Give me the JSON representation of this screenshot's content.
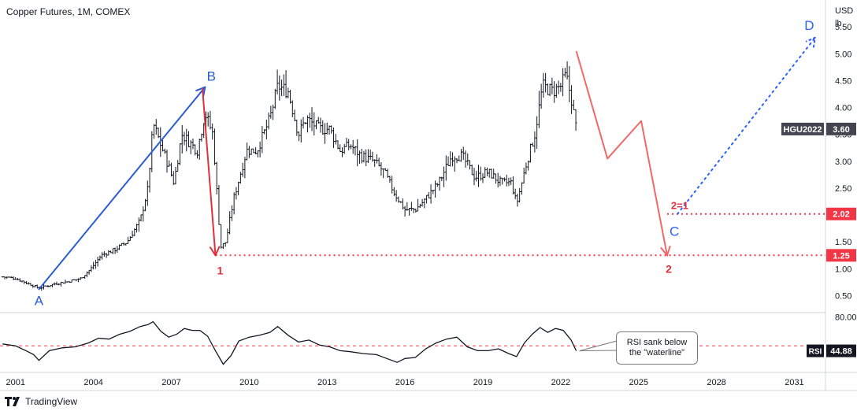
{
  "header": {
    "title": "Copper Futures, 1M, COMEX",
    "units_line1": "USD",
    "units_line2": "lb"
  },
  "footer": {
    "brand": "TradingView"
  },
  "colors": {
    "wave_blue": "#2a5bd7",
    "wave_red": "#e0303d",
    "projection_red": "#f0686a",
    "dotted_blue": "#2962ff",
    "candles": "#131722",
    "badge_dark": "#434651",
    "badge_red": "#f23645",
    "rsi_line": "#131722",
    "grid": "#e0e3eb"
  },
  "chart_data": [
    {
      "type": "candlestick",
      "title": "Copper Futures, 1M, COMEX",
      "xlabel": "",
      "ylabel": "USD lb",
      "x_ticks": [
        "2001",
        "2004",
        "2007",
        "2010",
        "2013",
        "2016",
        "2019",
        "2022",
        "2025",
        "2028",
        "2031"
      ],
      "x_range": [
        2000.4,
        2032.2
      ],
      "y_ticks": [
        "0.50",
        "1.00",
        "1.50",
        "2.00",
        "2.50",
        "3.00",
        "3.50",
        "4.00",
        "4.50",
        "5.00",
        "5.50"
      ],
      "y_range": [
        0.2,
        6.0
      ],
      "approx_close_path": [
        [
          2000.5,
          0.85
        ],
        [
          2001.0,
          0.82
        ],
        [
          2001.5,
          0.72
        ],
        [
          2001.9,
          0.64
        ],
        [
          2002.5,
          0.72
        ],
        [
          2003.0,
          0.76
        ],
        [
          2003.5,
          0.82
        ],
        [
          2003.9,
          1.0
        ],
        [
          2004.3,
          1.25
        ],
        [
          2004.8,
          1.35
        ],
        [
          2005.3,
          1.5
        ],
        [
          2005.8,
          1.9
        ],
        [
          2006.1,
          2.5
        ],
        [
          2006.3,
          3.7
        ],
        [
          2006.6,
          3.3
        ],
        [
          2006.9,
          2.9
        ],
        [
          2007.1,
          2.6
        ],
        [
          2007.4,
          3.5
        ],
        [
          2007.8,
          3.3
        ],
        [
          2008.0,
          3.2
        ],
        [
          2008.3,
          3.9
        ],
        [
          2008.6,
          3.5
        ],
        [
          2008.9,
          1.4
        ],
        [
          2009.1,
          1.5
        ],
        [
          2009.4,
          2.3
        ],
        [
          2009.9,
          3.2
        ],
        [
          2010.3,
          3.2
        ],
        [
          2010.8,
          3.8
        ],
        [
          2011.1,
          4.4
        ],
        [
          2011.5,
          4.3
        ],
        [
          2011.9,
          3.5
        ],
        [
          2012.2,
          3.8
        ],
        [
          2012.7,
          3.6
        ],
        [
          2013.1,
          3.6
        ],
        [
          2013.5,
          3.2
        ],
        [
          2013.9,
          3.3
        ],
        [
          2014.3,
          3.1
        ],
        [
          2014.8,
          3.0
        ],
        [
          2015.2,
          2.8
        ],
        [
          2015.6,
          2.4
        ],
        [
          2016.0,
          2.1
        ],
        [
          2016.4,
          2.1
        ],
        [
          2016.8,
          2.3
        ],
        [
          2017.3,
          2.6
        ],
        [
          2017.8,
          3.1
        ],
        [
          2018.2,
          3.1
        ],
        [
          2018.7,
          2.7
        ],
        [
          2019.2,
          2.8
        ],
        [
          2019.7,
          2.6
        ],
        [
          2020.1,
          2.6
        ],
        [
          2020.3,
          2.2
        ],
        [
          2020.7,
          3.0
        ],
        [
          2021.0,
          3.5
        ],
        [
          2021.3,
          4.4
        ],
        [
          2021.7,
          4.3
        ],
        [
          2022.0,
          4.4
        ],
        [
          2022.2,
          4.6
        ],
        [
          2022.4,
          4.2
        ],
        [
          2022.6,
          3.6
        ]
      ],
      "annotations": [
        {
          "label": "A",
          "x": 2001.9,
          "y": 0.62,
          "color": "#2a5bd7"
        },
        {
          "label": "B",
          "x": 2008.3,
          "y": 4.38,
          "color": "#2a5bd7"
        },
        {
          "label": "1",
          "x": 2009.0,
          "y": 1.25,
          "color": "#e0303d"
        },
        {
          "label": "2",
          "x": 2026.1,
          "y": 1.25,
          "color": "#e0303d"
        },
        {
          "label": "2=1",
          "x": 2026.1,
          "y": 2.02,
          "color": "#e0303d"
        },
        {
          "label": "C",
          "x": 2026.5,
          "y": 2.02,
          "color": "#2962ff"
        },
        {
          "label": "D",
          "x": 2032.0,
          "y": 5.3,
          "color": "#2962ff"
        }
      ],
      "blue_wave_arrow": [
        [
          2001.9,
          0.62
        ],
        [
          2008.3,
          4.38
        ]
      ],
      "red_wave_arrow": [
        [
          2008.2,
          4.35
        ],
        [
          2008.7,
          1.25
        ]
      ],
      "projection_path": [
        [
          2022.6,
          5.05
        ],
        [
          2023.8,
          3.05
        ],
        [
          2025.1,
          3.75
        ],
        [
          2026.1,
          1.25
        ]
      ],
      "dotted_projection": [
        [
          2026.5,
          2.02
        ],
        [
          2031.8,
          5.3
        ]
      ],
      "levels": [
        {
          "label": "1.25",
          "value": 1.25,
          "from_x": 2008.7
        },
        {
          "label": "2.02",
          "value": 2.02,
          "from_x": 2026.1
        }
      ],
      "last_price": {
        "symbol": "HGU2022",
        "value": "3.60"
      }
    },
    {
      "type": "line",
      "title": "",
      "series": [
        {
          "name": "RSI",
          "x": [
            2000.5,
            2001.0,
            2001.4,
            2001.7,
            2001.9,
            2002.3,
            2002.8,
            2003.3,
            2003.8,
            2004.2,
            2004.6,
            2005.0,
            2005.4,
            2005.8,
            2006.1,
            2006.3,
            2006.6,
            2006.9,
            2007.2,
            2007.5,
            2007.8,
            2008.1,
            2008.4,
            2008.7,
            2009.0,
            2009.3,
            2009.6,
            2010.0,
            2010.4,
            2010.8,
            2011.1,
            2011.5,
            2011.9,
            2012.3,
            2012.7,
            2013.1,
            2013.5,
            2013.9,
            2014.4,
            2014.9,
            2015.3,
            2015.7,
            2016.0,
            2016.4,
            2016.8,
            2017.2,
            2017.6,
            2018.0,
            2018.4,
            2018.8,
            2019.2,
            2019.6,
            2020.0,
            2020.3,
            2020.6,
            2020.9,
            2021.2,
            2021.5,
            2021.8,
            2022.1,
            2022.4,
            2022.6
          ],
          "values": [
            52,
            50,
            45,
            41,
            35,
            45,
            48,
            49,
            53,
            58,
            57,
            62,
            65,
            70,
            72,
            75,
            65,
            59,
            62,
            68,
            66,
            66,
            60,
            45,
            31,
            40,
            55,
            59,
            61,
            64,
            70,
            61,
            54,
            56,
            51,
            49,
            45,
            44,
            42,
            41,
            37,
            33,
            37,
            38,
            47,
            53,
            57,
            59,
            49,
            45,
            45,
            47,
            42,
            39,
            53,
            62,
            69,
            64,
            68,
            66,
            56,
            44.88
          ]
        }
      ],
      "y_ticks": [
        "80.00"
      ],
      "y_range": [
        25,
        82
      ],
      "reference_line": 50,
      "last_value": {
        "label": "RSI",
        "value": "44.88"
      },
      "callout": "RSI sank below the \"waterline\""
    }
  ]
}
